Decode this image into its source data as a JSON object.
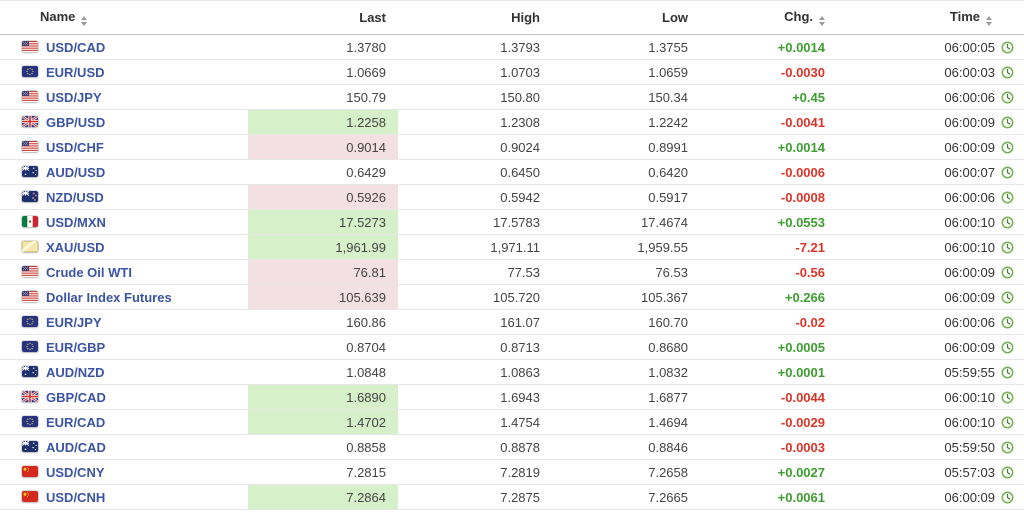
{
  "colors": {
    "up": "#3c9e2e",
    "down": "#dc3428",
    "flash_up": "#d6f0c9",
    "flash_down": "#f3e0e2",
    "link": "#3b54a4"
  },
  "table": {
    "headers": {
      "name": "Name",
      "last": "Last",
      "high": "High",
      "low": "Low",
      "chg": "Chg.",
      "time": "Time"
    },
    "sortable_columns": [
      "name",
      "chg",
      "time"
    ],
    "rows": [
      {
        "flag": "us-flag",
        "name": "USD/CAD",
        "last": "1.3780",
        "high": "1.3793",
        "low": "1.3755",
        "chg": "+0.0014",
        "chg_dir": "up",
        "last_flash": "none",
        "time": "06:00:05",
        "time_icon": "clock-icon"
      },
      {
        "flag": "eu-flag",
        "name": "EUR/USD",
        "last": "1.0669",
        "high": "1.0703",
        "low": "1.0659",
        "chg": "-0.0030",
        "chg_dir": "down",
        "last_flash": "none",
        "time": "06:00:03",
        "time_icon": "clock-icon"
      },
      {
        "flag": "us-flag",
        "name": "USD/JPY",
        "last": "150.79",
        "high": "150.80",
        "low": "150.34",
        "chg": "+0.45",
        "chg_dir": "up",
        "last_flash": "none",
        "time": "06:00:06",
        "time_icon": "clock-icon"
      },
      {
        "flag": "gb-flag",
        "name": "GBP/USD",
        "last": "1.2258",
        "high": "1.2308",
        "low": "1.2242",
        "chg": "-0.0041",
        "chg_dir": "down",
        "last_flash": "up",
        "time": "06:00:09",
        "time_icon": "clock-icon"
      },
      {
        "flag": "us-flag",
        "name": "USD/CHF",
        "last": "0.9014",
        "high": "0.9024",
        "low": "0.8991",
        "chg": "+0.0014",
        "chg_dir": "up",
        "last_flash": "down",
        "time": "06:00:09",
        "time_icon": "clock-icon"
      },
      {
        "flag": "au-flag",
        "name": "AUD/USD",
        "last": "0.6429",
        "high": "0.6450",
        "low": "0.6420",
        "chg": "-0.0006",
        "chg_dir": "down",
        "last_flash": "none",
        "time": "06:00:07",
        "time_icon": "clock-icon"
      },
      {
        "flag": "nz-flag",
        "name": "NZD/USD",
        "last": "0.5926",
        "high": "0.5942",
        "low": "0.5917",
        "chg": "-0.0008",
        "chg_dir": "down",
        "last_flash": "down",
        "time": "06:00:06",
        "time_icon": "clock-icon"
      },
      {
        "flag": "mx-flag",
        "name": "USD/MXN",
        "last": "17.5273",
        "high": "17.5783",
        "low": "17.4674",
        "chg": "+0.0553",
        "chg_dir": "up",
        "last_flash": "up",
        "time": "06:00:10",
        "time_icon": "clock-icon"
      },
      {
        "flag": "gold-icon",
        "name": "XAU/USD",
        "last": "1,961.99",
        "high": "1,971.11",
        "low": "1,959.55",
        "chg": "-7.21",
        "chg_dir": "down",
        "last_flash": "up",
        "time": "06:00:10",
        "time_icon": "clock-icon"
      },
      {
        "flag": "us-flag",
        "name": "Crude Oil WTI",
        "last": "76.81",
        "high": "77.53",
        "low": "76.53",
        "chg": "-0.56",
        "chg_dir": "down",
        "last_flash": "down",
        "time": "06:00:09",
        "time_icon": "clock-icon"
      },
      {
        "flag": "us-flag",
        "name": "Dollar Index Futures",
        "last": "105.639",
        "high": "105.720",
        "low": "105.367",
        "chg": "+0.266",
        "chg_dir": "up",
        "last_flash": "down",
        "time": "06:00:09",
        "time_icon": "clock-icon"
      },
      {
        "flag": "eu-flag",
        "name": "EUR/JPY",
        "last": "160.86",
        "high": "161.07",
        "low": "160.70",
        "chg": "-0.02",
        "chg_dir": "down",
        "last_flash": "none",
        "time": "06:00:06",
        "time_icon": "clock-icon"
      },
      {
        "flag": "eu-flag",
        "name": "EUR/GBP",
        "last": "0.8704",
        "high": "0.8713",
        "low": "0.8680",
        "chg": "+0.0005",
        "chg_dir": "up",
        "last_flash": "none",
        "time": "06:00:09",
        "time_icon": "clock-icon"
      },
      {
        "flag": "au-flag",
        "name": "AUD/NZD",
        "last": "1.0848",
        "high": "1.0863",
        "low": "1.0832",
        "chg": "+0.0001",
        "chg_dir": "up",
        "last_flash": "none",
        "time": "05:59:55",
        "time_icon": "clock-icon"
      },
      {
        "flag": "gb-flag",
        "name": "GBP/CAD",
        "last": "1.6890",
        "high": "1.6943",
        "low": "1.6877",
        "chg": "-0.0044",
        "chg_dir": "down",
        "last_flash": "up",
        "time": "06:00:10",
        "time_icon": "clock-icon"
      },
      {
        "flag": "eu-flag",
        "name": "EUR/CAD",
        "last": "1.4702",
        "high": "1.4754",
        "low": "1.4694",
        "chg": "-0.0029",
        "chg_dir": "down",
        "last_flash": "up",
        "time": "06:00:10",
        "time_icon": "clock-icon"
      },
      {
        "flag": "au-flag",
        "name": "AUD/CAD",
        "last": "0.8858",
        "high": "0.8878",
        "low": "0.8846",
        "chg": "-0.0003",
        "chg_dir": "down",
        "last_flash": "none",
        "time": "05:59:50",
        "time_icon": "clock-icon"
      },
      {
        "flag": "cn-flag",
        "name": "USD/CNY",
        "last": "7.2815",
        "high": "7.2819",
        "low": "7.2658",
        "chg": "+0.0027",
        "chg_dir": "up",
        "last_flash": "none",
        "time": "05:57:03",
        "time_icon": "clock-icon"
      },
      {
        "flag": "cn-flag",
        "name": "USD/CNH",
        "last": "7.2864",
        "high": "7.2875",
        "low": "7.2665",
        "chg": "+0.0061",
        "chg_dir": "up",
        "last_flash": "up",
        "time": "06:00:09",
        "time_icon": "clock-icon"
      }
    ]
  }
}
